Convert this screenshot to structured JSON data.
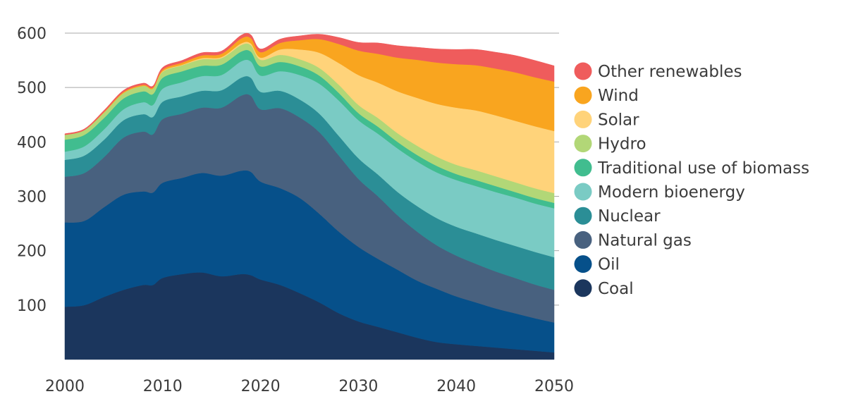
{
  "chart_data": {
    "type": "area",
    "stacked": true,
    "title": "",
    "xlabel": "",
    "ylabel": "",
    "xlim": [
      2000,
      2050
    ],
    "ylim": [
      0,
      600
    ],
    "x_ticks": [
      2000,
      2010,
      2020,
      2030,
      2040,
      2050
    ],
    "y_ticks": [
      100,
      200,
      300,
      400,
      500,
      600
    ],
    "grid": "horizontal",
    "legend_position": "right",
    "x": [
      2000,
      2002,
      2004,
      2006,
      2008,
      2009,
      2010,
      2012,
      2014,
      2016,
      2018,
      2019,
      2020,
      2022,
      2024,
      2026,
      2028,
      2030,
      2032,
      2034,
      2036,
      2038,
      2040,
      2042,
      2044,
      2046,
      2048,
      2050
    ],
    "series": [
      {
        "name": "Coal",
        "color": "#1b365d",
        "values": [
          97,
          100,
          115,
          128,
          137,
          137,
          150,
          157,
          160,
          153,
          157,
          155,
          147,
          137,
          122,
          105,
          85,
          70,
          60,
          50,
          40,
          32,
          28,
          25,
          22,
          19,
          16,
          13
        ]
      },
      {
        "name": "Oil",
        "color": "#06508a",
        "values": [
          155,
          155,
          165,
          175,
          172,
          170,
          175,
          177,
          183,
          185,
          190,
          190,
          180,
          178,
          175,
          163,
          150,
          137,
          125,
          115,
          105,
          98,
          88,
          80,
          72,
          66,
          60,
          55
        ]
      },
      {
        "name": "Natural gas",
        "color": "#48617f",
        "values": [
          84,
          88,
          92,
          105,
          110,
          107,
          117,
          118,
          120,
          125,
          138,
          140,
          133,
          147,
          148,
          150,
          140,
          125,
          115,
          100,
          90,
          80,
          75,
          71,
          68,
          65,
          62,
          60
        ]
      },
      {
        "name": "Nuclear",
        "color": "#2b8e96",
        "values": [
          31,
          32,
          32,
          32,
          32,
          32,
          32,
          32,
          31,
          32,
          33,
          33,
          32,
          32,
          33,
          34,
          36,
          38,
          40,
          43,
          47,
          50,
          53,
          56,
          58,
          59,
          60,
          60
        ]
      },
      {
        "name": "Modern bioenergy",
        "color": "#7acbc4",
        "values": [
          15,
          17,
          19,
          20,
          22,
          22,
          24,
          26,
          27,
          28,
          30,
          30,
          30,
          36,
          45,
          55,
          65,
          70,
          75,
          80,
          82,
          84,
          86,
          87,
          88,
          89,
          89,
          90
        ]
      },
      {
        "name": "Traditional use of biomass",
        "color": "#41bd8f",
        "values": [
          22,
          21,
          21,
          20,
          20,
          20,
          20,
          20,
          19,
          19,
          18,
          18,
          17,
          17,
          16,
          15,
          14,
          13,
          13,
          12,
          12,
          12,
          11,
          11,
          11,
          10,
          10,
          10
        ]
      },
      {
        "name": "Hydro",
        "color": "#b2d777",
        "values": [
          9,
          9,
          10,
          10,
          10,
          10,
          11,
          11,
          12,
          12,
          12,
          12,
          12,
          13,
          13,
          14,
          15,
          15,
          16,
          16,
          17,
          17,
          17,
          18,
          18,
          18,
          18,
          18
        ]
      },
      {
        "name": "Solar",
        "color": "#ffd37a",
        "values": [
          0,
          0,
          0,
          0,
          0,
          0,
          1,
          1,
          2,
          2,
          3,
          3,
          4,
          10,
          18,
          28,
          40,
          55,
          65,
          77,
          88,
          97,
          105,
          110,
          112,
          113,
          114,
          114
        ]
      },
      {
        "name": "Wind",
        "color": "#f9a51f",
        "values": [
          0,
          0,
          1,
          2,
          2,
          2,
          3,
          4,
          5,
          6,
          9,
          10,
          10,
          12,
          17,
          25,
          35,
          45,
          53,
          62,
          70,
          76,
          80,
          83,
          86,
          89,
          90,
          91
        ]
      },
      {
        "name": "Other renewables",
        "color": "#ef5c5c",
        "values": [
          2,
          2,
          3,
          3,
          3,
          3,
          4,
          4,
          5,
          5,
          6,
          6,
          6,
          7,
          8,
          9,
          12,
          15,
          20,
          22,
          23,
          25,
          27,
          29,
          30,
          31,
          31,
          29
        ]
      }
    ],
    "legend_order": [
      "Other renewables",
      "Wind",
      "Solar",
      "Hydro",
      "Traditional use of biomass",
      "Modern bioenergy",
      "Nuclear",
      "Natural gas",
      "Oil",
      "Coal"
    ]
  }
}
